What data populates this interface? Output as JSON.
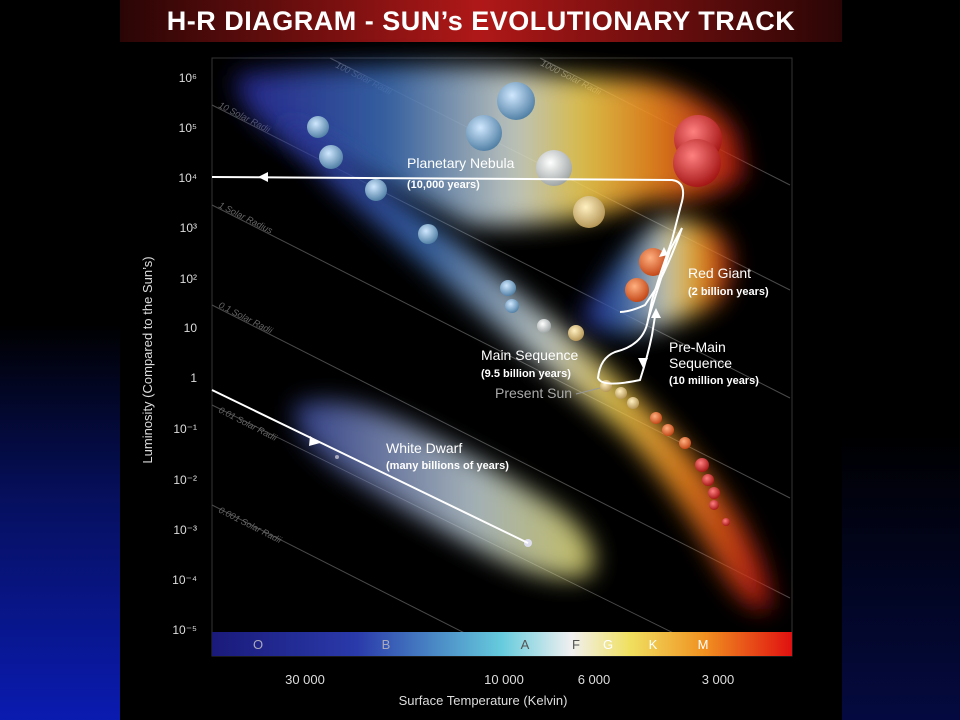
{
  "title": "H-R DIAGRAM - SUN’s EVOLUTIONARY TRACK",
  "y_axis": {
    "label": "Luminosity (Compared to the Sun’s)",
    "ticks": [
      "10⁶",
      "10⁵",
      "10⁴",
      "10³",
      "10²",
      "10",
      "1",
      "10⁻¹",
      "10⁻²",
      "10⁻³",
      "10⁻⁴",
      "10⁻⁵"
    ]
  },
  "x_axis": {
    "label": "Surface Temperature (Kelvin)",
    "ticks": [
      "30 000",
      "10 000",
      "6 000",
      "3 000"
    ]
  },
  "spectral_classes": [
    "O",
    "B",
    "A",
    "F",
    "G",
    "K",
    "M"
  ],
  "radii_lines": [
    "100 Solar Radii",
    "1000 Solar Radii",
    "10 Solar Radii",
    "1 Solar Radius",
    "0.1 Solar Radii",
    "0.01 Solar Radii",
    "0.001 Solar Radii"
  ],
  "annotations": {
    "planetary_nebula": {
      "name": "Planetary Nebula",
      "time": "(10,000 years)"
    },
    "red_giant": {
      "name": "Red Giant",
      "time": "(2 billion years)"
    },
    "main_sequence": {
      "name": "Main Sequence",
      "time": "(9.5 billion years)"
    },
    "pre_main_sequence": {
      "line1": "Pre-Main",
      "line2": "Sequence",
      "time": "(10 million years)"
    },
    "present_sun": "Present Sun",
    "white_dwarf": {
      "name": "White Dwarf",
      "time": "(many billions of years)"
    }
  }
}
